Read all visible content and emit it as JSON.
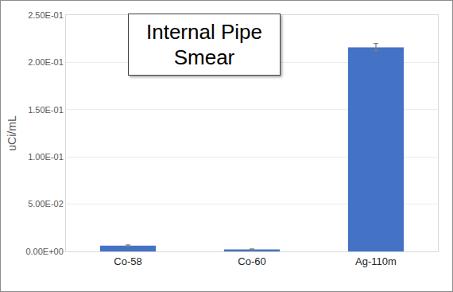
{
  "chart_data": {
    "type": "bar",
    "title": "Internal Pipe Smear",
    "y_label": "uCi/mL",
    "categories": [
      "Co-58",
      "Co-60",
      "Ag-110m"
    ],
    "values": [
      0.0062,
      0.0022,
      0.216
    ],
    "errors": [
      0.0007,
      0.0005,
      0.004
    ],
    "color": "#4472c4",
    "ylim": [
      0,
      0.25
    ],
    "yticks": [
      {
        "value": 0,
        "label": "0.00E+00"
      },
      {
        "value": 0.05,
        "label": "5.00E-02"
      },
      {
        "value": 0.1,
        "label": "1.00E-01"
      },
      {
        "value": 0.15,
        "label": "1.50E-01"
      },
      {
        "value": 0.2,
        "label": "2.00E-01"
      },
      {
        "value": 0.25,
        "label": "2.50E-01"
      }
    ],
    "grid": true
  }
}
